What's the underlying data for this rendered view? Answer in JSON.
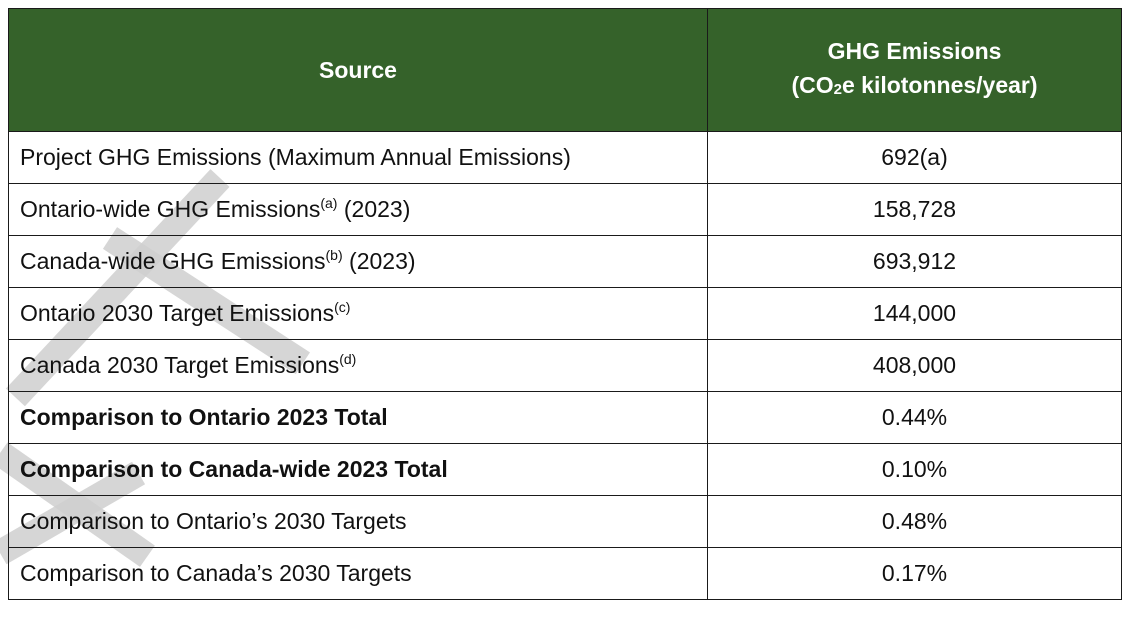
{
  "table": {
    "header": {
      "source": "Source",
      "emissions_line1": "GHG Emissions",
      "emissions_line2_pre": "(CO",
      "emissions_line2_sub": "2",
      "emissions_line2_post": "e kilotonnes/year)"
    },
    "rows": [
      {
        "source": "Project GHG Emissions (Maximum Annual Emissions)",
        "sup": "",
        "suffix": "",
        "value": "692(a)",
        "bold": false
      },
      {
        "source": "Ontario-wide GHG Emissions",
        "sup": "(a)",
        "suffix": " (2023)",
        "value": "158,728",
        "bold": false
      },
      {
        "source": "Canada-wide GHG Emissions",
        "sup": "(b)",
        "suffix": " (2023)",
        "value": "693,912",
        "bold": false
      },
      {
        "source": "Ontario 2030 Target Emissions",
        "sup": "(c)",
        "suffix": "",
        "value": "144,000",
        "bold": false
      },
      {
        "source": "Canada 2030 Target Emissions",
        "sup": "(d)",
        "suffix": "",
        "value": "408,000",
        "bold": false
      },
      {
        "source": "Comparison to Ontario 2023 Total",
        "sup": "",
        "suffix": "",
        "value": "0.44%",
        "bold": true
      },
      {
        "source": "Comparison to Canada-wide 2023 Total",
        "sup": "",
        "suffix": "",
        "value": "0.10%",
        "bold": true
      },
      {
        "source": "Comparison to Ontario’s 2030 Targets",
        "sup": "",
        "suffix": "",
        "value": "0.48%",
        "bold": false
      },
      {
        "source": "Comparison to Canada’s 2030 Targets",
        "sup": "",
        "suffix": "",
        "value": "0.17%",
        "bold": false
      }
    ]
  },
  "watermark": "DRAFT",
  "colors": {
    "header_bg": "#35622a",
    "header_text": "#ffffff",
    "watermark": "#cfcfcf"
  }
}
